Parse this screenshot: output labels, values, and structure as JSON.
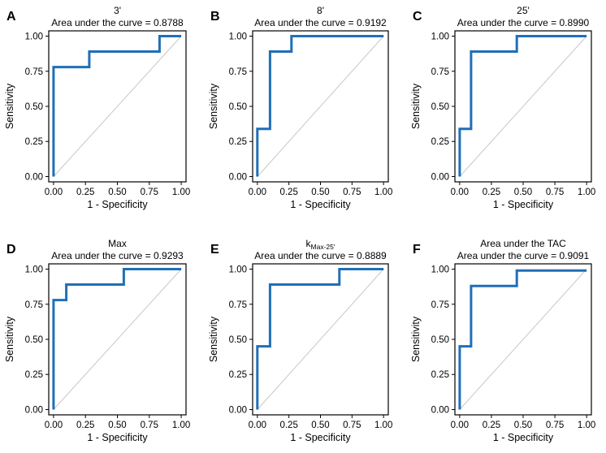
{
  "chart_data": [
    {
      "type": "line",
      "panel": "A",
      "title": "3'",
      "subtitle": "Area under the curve = 0.8788",
      "xlabel": "1 - Specificity",
      "ylabel": "Sensitivity",
      "xlim": [
        0,
        1
      ],
      "ylim": [
        0,
        1
      ],
      "xticks": [
        "0.00",
        "0.25",
        "0.50",
        "0.75",
        "1.00"
      ],
      "yticks": [
        "0.00",
        "0.25",
        "0.50",
        "0.75",
        "1.00"
      ],
      "reference_line": [
        [
          0,
          0
        ],
        [
          1,
          1
        ]
      ],
      "series": [
        {
          "name": "ROC",
          "x": [
            0,
            0,
            0.28,
            0.28,
            0.83,
            0.83,
            1.0
          ],
          "y": [
            0,
            0.78,
            0.78,
            0.89,
            0.89,
            1.0,
            1.0
          ]
        }
      ],
      "colors": {
        "roc": "#1f6fb8",
        "reference": "#c8c8c8"
      }
    },
    {
      "type": "line",
      "panel": "B",
      "title": "8'",
      "subtitle": "Area under the curve = 0.9192",
      "xlabel": "1 - Specificity",
      "ylabel": "Sensitivity",
      "xlim": [
        0,
        1
      ],
      "ylim": [
        0,
        1
      ],
      "xticks": [
        "0.00",
        "0.25",
        "0.50",
        "0.75",
        "1.00"
      ],
      "yticks": [
        "0.00",
        "0.25",
        "0.50",
        "0.75",
        "1.00"
      ],
      "reference_line": [
        [
          0,
          0
        ],
        [
          1,
          1
        ]
      ],
      "series": [
        {
          "name": "ROC",
          "x": [
            0,
            0,
            0.1,
            0.1,
            0.27,
            0.27,
            1.0
          ],
          "y": [
            0,
            0.34,
            0.34,
            0.89,
            0.89,
            1.0,
            1.0
          ]
        }
      ],
      "colors": {
        "roc": "#1f6fb8",
        "reference": "#c8c8c8"
      }
    },
    {
      "type": "line",
      "panel": "C",
      "title": "25'",
      "subtitle": "Area under the curve = 0.8990",
      "xlabel": "1 - Specificity",
      "ylabel": "Sensitivity",
      "xlim": [
        0,
        1
      ],
      "ylim": [
        0,
        1
      ],
      "xticks": [
        "0.00",
        "0.25",
        "0.50",
        "0.75",
        "1.00"
      ],
      "yticks": [
        "0.00",
        "0.25",
        "0.50",
        "0.75",
        "1.00"
      ],
      "reference_line": [
        [
          0,
          0
        ],
        [
          1,
          1
        ]
      ],
      "series": [
        {
          "name": "ROC",
          "x": [
            0,
            0,
            0.09,
            0.09,
            0.45,
            0.45,
            1.0
          ],
          "y": [
            0,
            0.34,
            0.34,
            0.89,
            0.89,
            1.0,
            1.0
          ]
        }
      ],
      "colors": {
        "roc": "#1f6fb8",
        "reference": "#c8c8c8"
      }
    },
    {
      "type": "line",
      "panel": "D",
      "title": "Max",
      "subtitle": "Area under the curve = 0.9293",
      "xlabel": "1 - Specificity",
      "ylabel": "Sensitivity",
      "xlim": [
        0,
        1
      ],
      "ylim": [
        0,
        1
      ],
      "xticks": [
        "0.00",
        "0.25",
        "0.50",
        "0.75",
        "1.00"
      ],
      "yticks": [
        "0.00",
        "0.25",
        "0.50",
        "0.75",
        "1.00"
      ],
      "reference_line": [
        [
          0,
          0
        ],
        [
          1,
          1
        ]
      ],
      "series": [
        {
          "name": "ROC",
          "x": [
            0,
            0,
            0.1,
            0.1,
            0.55,
            0.55,
            1.0
          ],
          "y": [
            0,
            0.78,
            0.78,
            0.89,
            0.89,
            1.0,
            1.0
          ]
        }
      ],
      "colors": {
        "roc": "#1f6fb8",
        "reference": "#c8c8c8"
      }
    },
    {
      "type": "line",
      "panel": "E",
      "title": "k",
      "title_subscript": "Max-25'",
      "subtitle": "Area under the curve = 0.8889",
      "xlabel": "1 - Specificity",
      "ylabel": "Sensitivity",
      "xlim": [
        0,
        1
      ],
      "ylim": [
        0,
        1
      ],
      "xticks": [
        "0.00",
        "0.25",
        "0.50",
        "0.75",
        "1.00"
      ],
      "yticks": [
        "0.00",
        "0.25",
        "0.50",
        "0.75",
        "1.00"
      ],
      "reference_line": [
        [
          0,
          0
        ],
        [
          1,
          1
        ]
      ],
      "series": [
        {
          "name": "ROC",
          "x": [
            0,
            0,
            0.1,
            0.1,
            0.65,
            0.65,
            1.0
          ],
          "y": [
            0,
            0.45,
            0.45,
            0.89,
            0.89,
            1.0,
            1.0
          ]
        }
      ],
      "colors": {
        "roc": "#1f6fb8",
        "reference": "#c8c8c8"
      }
    },
    {
      "type": "line",
      "panel": "F",
      "title": "Area under the TAC",
      "subtitle": "Area under the curve = 0.9091",
      "xlabel": "1 - Specificity",
      "ylabel": "Sensitivity",
      "xlim": [
        0,
        1
      ],
      "ylim": [
        0,
        1
      ],
      "xticks": [
        "0.00",
        "0.25",
        "0.50",
        "0.75",
        "1.00"
      ],
      "yticks": [
        "0.00",
        "0.25",
        "0.50",
        "0.75",
        "1.00"
      ],
      "reference_line": [
        [
          0,
          0
        ],
        [
          1,
          1
        ]
      ],
      "series": [
        {
          "name": "ROC",
          "x": [
            0,
            0,
            0.09,
            0.09,
            0.45,
            0.45,
            1.0
          ],
          "y": [
            0,
            0.45,
            0.45,
            0.88,
            0.88,
            0.99,
            0.99
          ]
        }
      ],
      "colors": {
        "roc": "#1f6fb8",
        "reference": "#c8c8c8"
      }
    }
  ]
}
